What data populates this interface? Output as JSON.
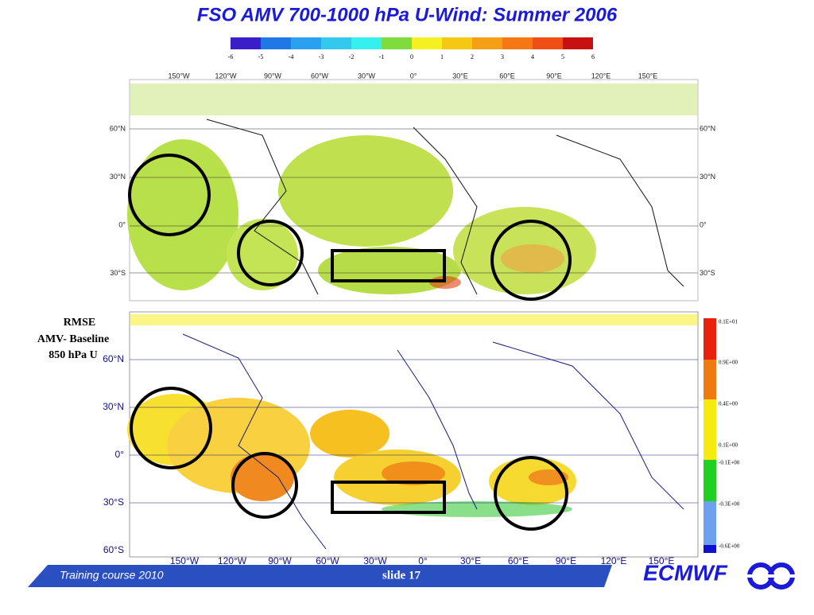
{
  "title": "FSO AMV 700-1000 hPa U-Wind: Summer 2006",
  "colorbar": {
    "colors": [
      "#3a1fc8",
      "#1f78e6",
      "#2aa0f0",
      "#33c8ee",
      "#36f0f0",
      "#7fdc3c",
      "#f5f020",
      "#f5c814",
      "#f5a014",
      "#f57814",
      "#f04e14",
      "#c81010"
    ],
    "labels": [
      "-6",
      "-5",
      "-4",
      "-3",
      "-2",
      "-1",
      "0",
      "1",
      "2",
      "3",
      "4",
      "5",
      "6"
    ]
  },
  "top_map": {
    "lon_labels": [
      "150°W",
      "120°W",
      "90°W",
      "60°W",
      "30°W",
      "0°",
      "30°E",
      "60°E",
      "90°E",
      "120°E",
      "150°E"
    ],
    "lat_labels": [
      "60°N",
      "30°N",
      "0°",
      "30°S"
    ]
  },
  "bottom_map": {
    "caption": [
      "RMSE",
      "AMV- Baseline",
      "850 hPa U"
    ],
    "lat_labels": [
      "60°N",
      "30°N",
      "0°",
      "30°S",
      "60°S"
    ],
    "lon_labels": [
      "150°W",
      "120°W",
      "90°W",
      "60°W",
      "30°W",
      "0°",
      "30°E",
      "60°E",
      "90°E",
      "120°E",
      "150°E"
    ],
    "legend": {
      "colors": [
        "#e8200e",
        "#ef7a10",
        "#f7ea10",
        "#22d022",
        "#6ea0f0",
        "#1010d0"
      ],
      "labels": [
        "0.1E+01",
        "0.9E+00",
        "0.4E+00",
        "0.1E+00",
        "-0.1E+00",
        "-0.3E+00",
        "-0.6E+00"
      ]
    }
  },
  "footer": {
    "course": "Training course  2010",
    "slide": "slide 17",
    "logo": "ECMWF"
  }
}
